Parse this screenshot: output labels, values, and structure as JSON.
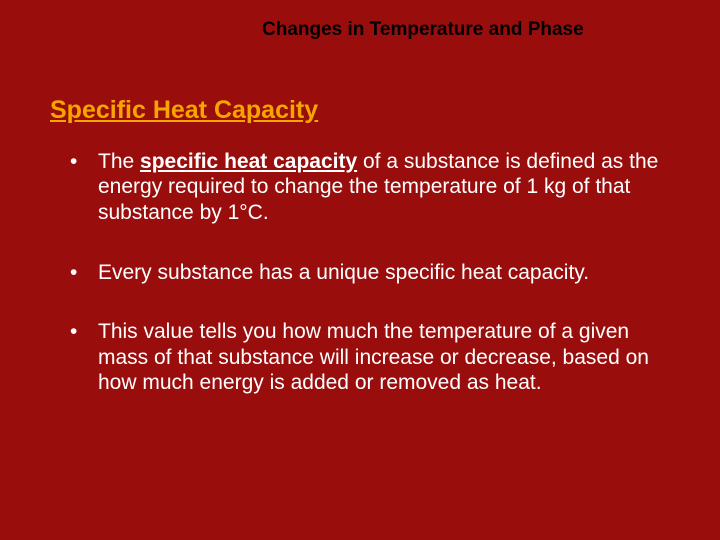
{
  "header": {
    "title": "Changes in Temperature and Phase"
  },
  "subtitle": "Specific Heat Capacity",
  "bullets": [
    {
      "prefix": "The ",
      "emphasis": "specific heat capacity",
      "suffix": " of a substance is defined as the energy required to change the temperature of 1 kg of that substance by 1°C."
    },
    {
      "prefix": "Every substance has a unique specific heat capacity.",
      "emphasis": "",
      "suffix": ""
    },
    {
      "prefix": "This value tells you how much the temperature of a given mass of that substance will increase or decrease, based on how much energy is added or removed as heat.",
      "emphasis": "",
      "suffix": ""
    }
  ],
  "colors": {
    "background": "#9a0d0d",
    "header_text": "#000000",
    "subtitle_text": "#f5a500",
    "body_text": "#ffffff"
  },
  "typography": {
    "header_fontsize": 19,
    "subtitle_fontsize": 25,
    "body_fontsize": 21,
    "font_family": "Arial"
  }
}
